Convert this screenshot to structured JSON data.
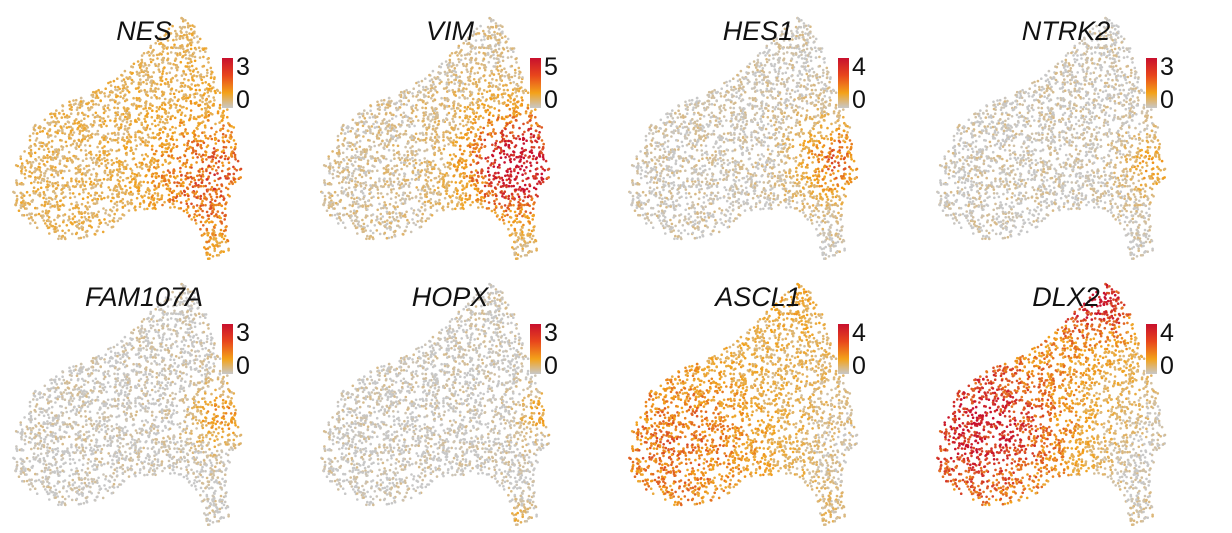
{
  "figure": {
    "colors": {
      "low": "#c8c8c8",
      "mid": "#f3a21a",
      "high": "#c8102e"
    },
    "chart_data": [
      {
        "type": "scatter",
        "title": "NES",
        "legend": {
          "min": "0",
          "max": "3"
        },
        "expression_pattern": "broad-moderate"
      },
      {
        "type": "scatter",
        "title": "VIM",
        "legend": {
          "min": "0",
          "max": "5"
        },
        "expression_pattern": "high-right"
      },
      {
        "type": "scatter",
        "title": "HES1",
        "legend": {
          "min": "0",
          "max": "4"
        },
        "expression_pattern": "moderate-right"
      },
      {
        "type": "scatter",
        "title": "NTRK2",
        "legend": {
          "min": "0",
          "max": "3"
        },
        "expression_pattern": "low-right"
      },
      {
        "type": "scatter",
        "title": "FAM107A",
        "legend": {
          "min": "0",
          "max": "3"
        },
        "expression_pattern": "sparse-right"
      },
      {
        "type": "scatter",
        "title": "HOPX",
        "legend": {
          "min": "0",
          "max": "3"
        },
        "expression_pattern": "sparse-right-edge"
      },
      {
        "type": "scatter",
        "title": "ASCL1",
        "legend": {
          "min": "0",
          "max": "4"
        },
        "expression_pattern": "moderate-left"
      },
      {
        "type": "scatter",
        "title": "DLX2",
        "legend": {
          "min": "0",
          "max": "4"
        },
        "expression_pattern": "high-left-top"
      }
    ]
  }
}
